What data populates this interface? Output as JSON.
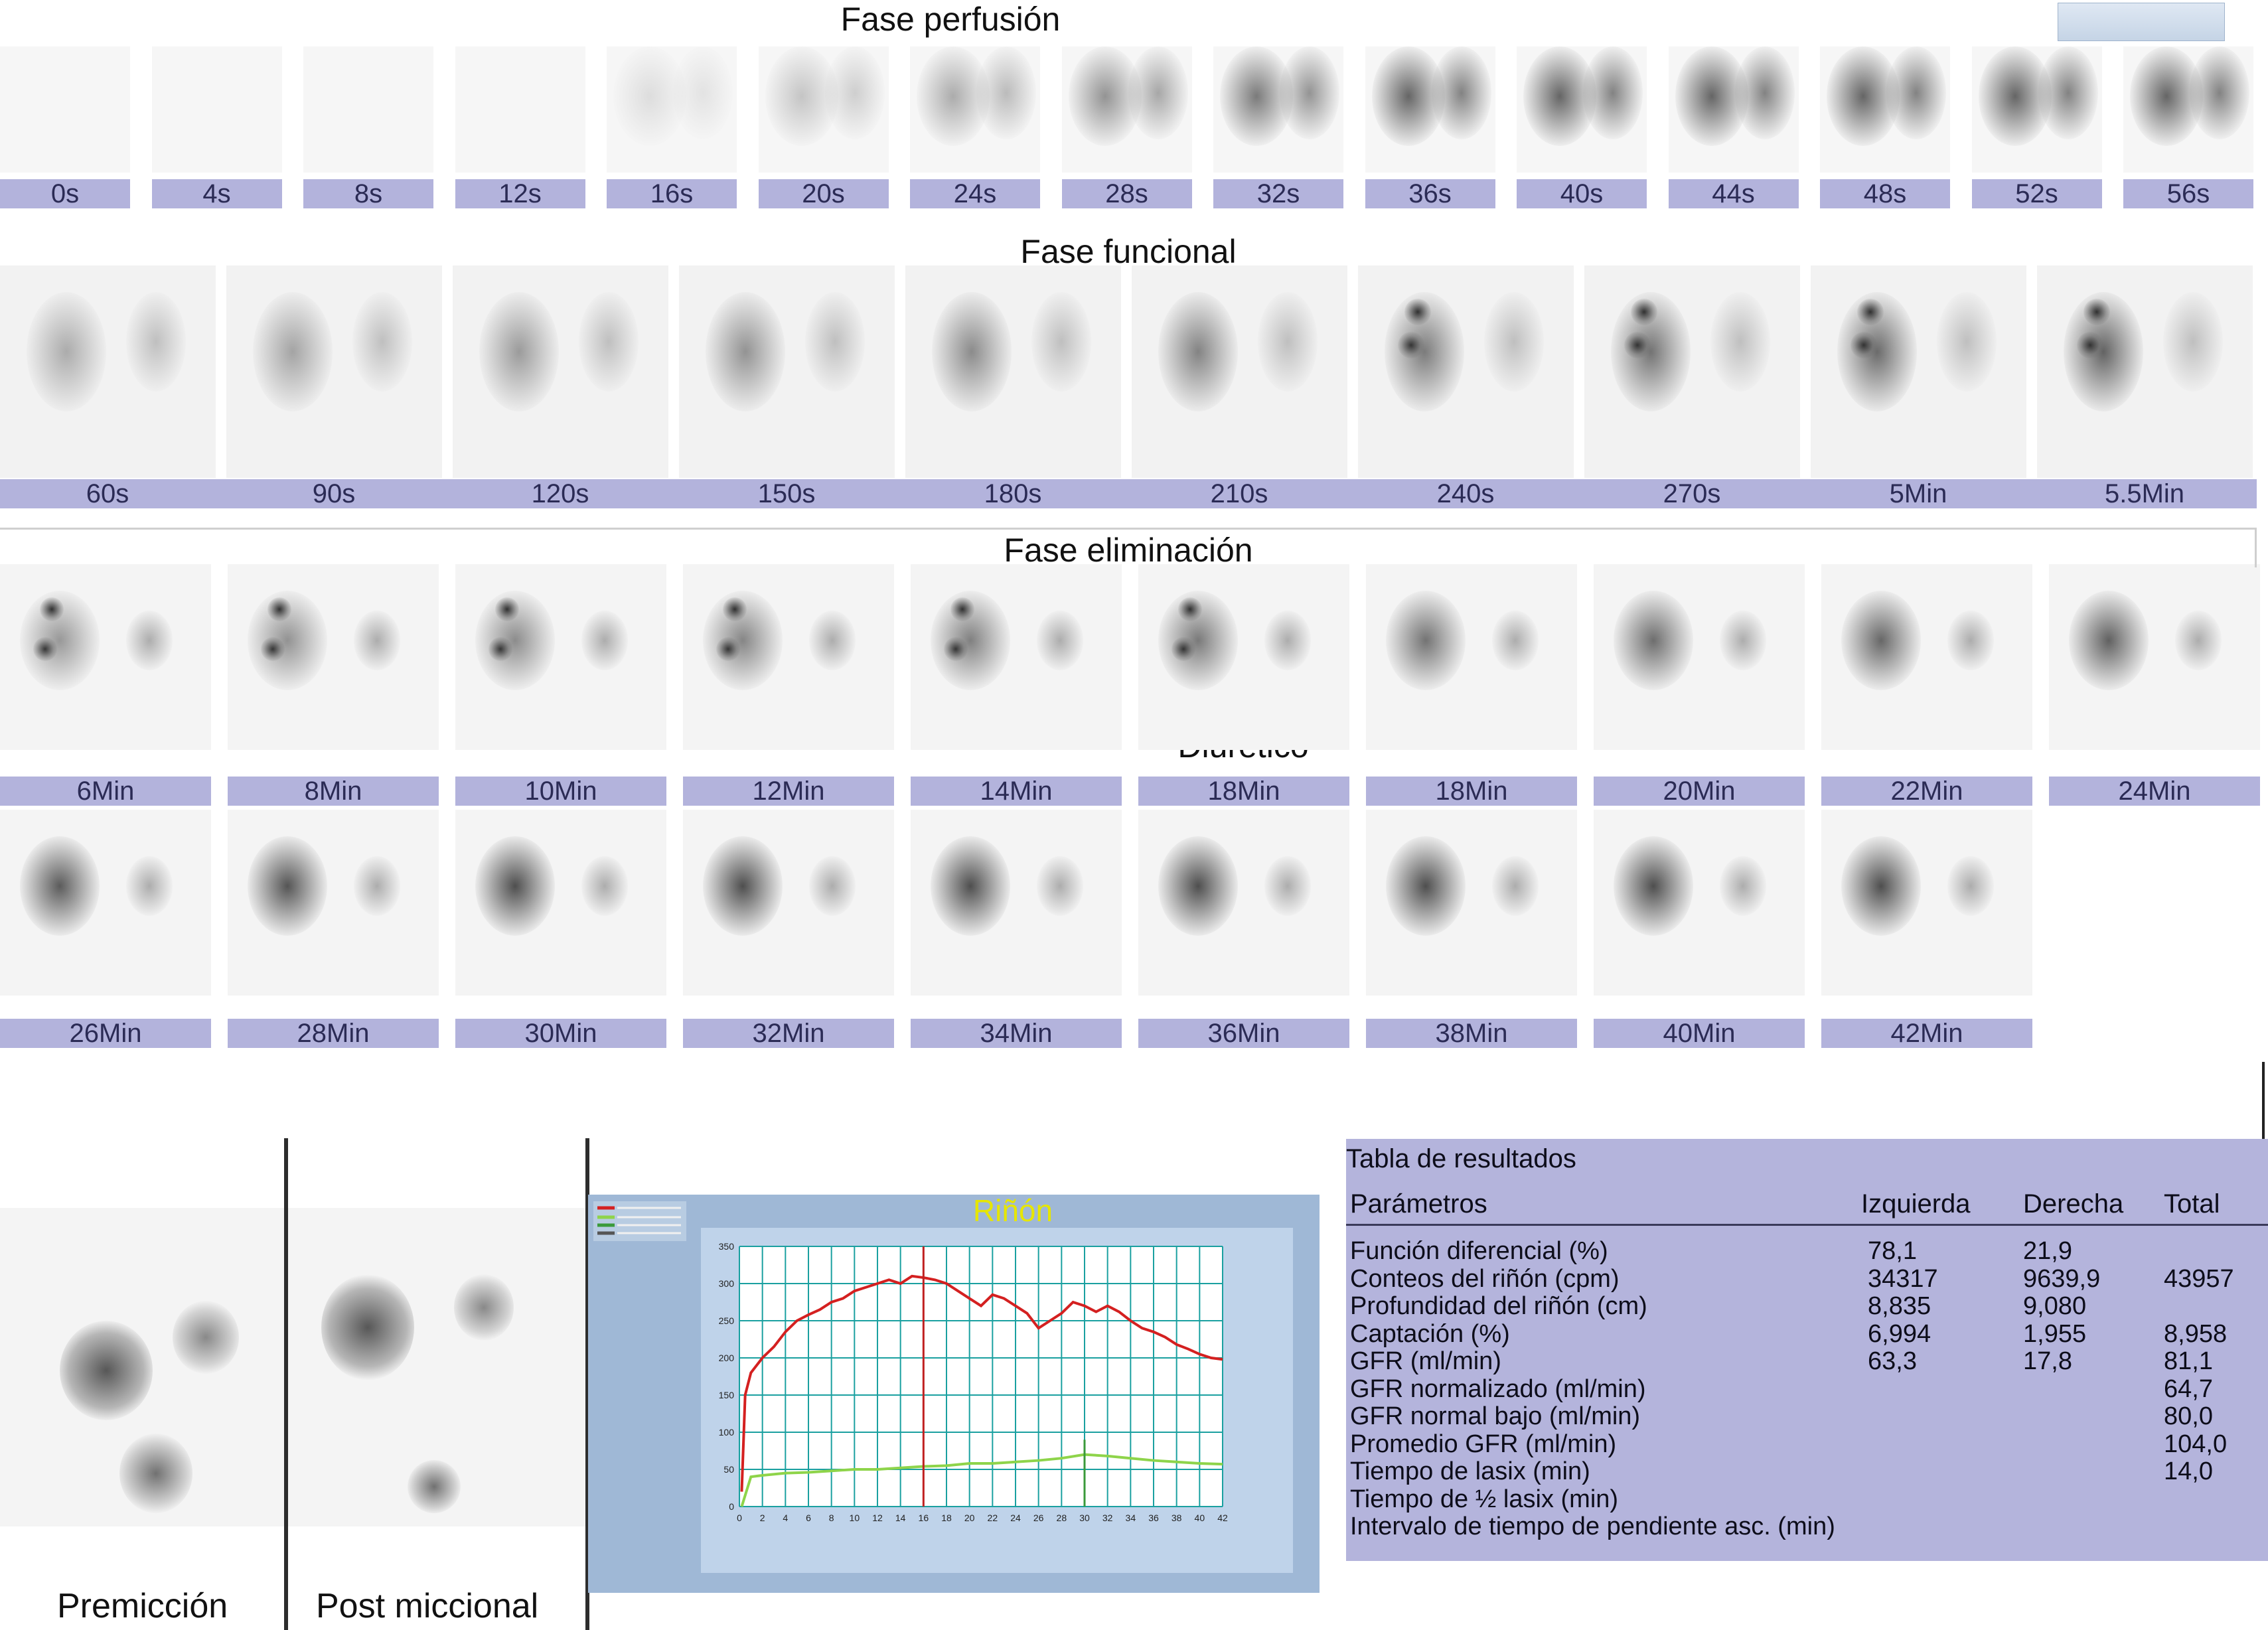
{
  "perfusion": {
    "title": "Fase perfusión",
    "labels": [
      "0s",
      "4s",
      "8s",
      "12s",
      "16s",
      "20s",
      "24s",
      "28s",
      "32s",
      "36s",
      "40s",
      "44s",
      "48s",
      "52s",
      "56s"
    ]
  },
  "functional": {
    "title": "Fase funcional",
    "labels": [
      "60s",
      "90s",
      "120s",
      "150s",
      "180s",
      "210s",
      "240s",
      "270s",
      "5Min",
      "5.5Min"
    ]
  },
  "elimination": {
    "title": "Fase eliminación",
    "diuretic_label": "Diurético",
    "labels_row1": [
      "6Min",
      "8Min",
      "10Min",
      "12Min",
      "14Min",
      "18Min",
      "18Min",
      "20Min",
      "22Min",
      "24Min"
    ],
    "labels_row2": [
      "26Min",
      "28Min",
      "30Min",
      "32Min",
      "34Min",
      "36Min",
      "38Min",
      "40Min",
      "42Min"
    ]
  },
  "bottom": {
    "premiccion_label": "Premicción",
    "post_label": "Post miccional"
  },
  "chart_data": {
    "type": "line",
    "title": "Riñón",
    "title_color": "#e6e600",
    "xlabel": "",
    "ylabel": "",
    "xlim": [
      0,
      42
    ],
    "ylim": [
      0,
      350
    ],
    "grid": true,
    "grid_color": "#1aa0a0",
    "x_ticks": [
      0,
      2,
      4,
      6,
      8,
      10,
      12,
      14,
      16,
      18,
      20,
      22,
      24,
      26,
      28,
      30,
      32,
      34,
      36,
      38,
      40,
      42
    ],
    "y_ticks": [
      0,
      50,
      100,
      150,
      200,
      250,
      300,
      350
    ],
    "x_tick_labels": [
      "0",
      "2",
      "4",
      "6",
      "8",
      "10",
      "12",
      "14",
      "16",
      "18",
      "20",
      "22",
      "24",
      "26",
      "28",
      "30",
      "32",
      "34",
      "36",
      "38",
      "40",
      "42"
    ],
    "y_tick_labels": [
      "0",
      "50",
      "100",
      "150",
      "200",
      "250",
      "300",
      "350"
    ],
    "series": [
      {
        "color": "#d42020",
        "x": [
          0.2,
          0.5,
          1,
          2,
          3,
          4,
          5,
          6,
          7,
          8,
          9,
          10,
          11,
          12,
          13,
          14,
          15,
          16,
          17,
          18,
          19,
          20,
          21,
          22,
          23,
          24,
          25,
          26,
          27,
          28,
          29,
          30,
          31,
          32,
          33,
          34,
          35,
          36,
          37,
          38,
          39,
          40,
          41,
          42
        ],
        "y": [
          20,
          150,
          180,
          200,
          215,
          235,
          250,
          258,
          265,
          275,
          280,
          290,
          295,
          300,
          305,
          300,
          310,
          308,
          305,
          300,
          290,
          280,
          270,
          285,
          280,
          270,
          260,
          240,
          250,
          260,
          275,
          270,
          262,
          270,
          262,
          250,
          240,
          235,
          228,
          218,
          212,
          205,
          200,
          198
        ]
      },
      {
        "color": "#8ed44a",
        "x": [
          0.2,
          1,
          2,
          4,
          6,
          8,
          10,
          12,
          14,
          16,
          18,
          20,
          22,
          24,
          26,
          28,
          30,
          32,
          34,
          36,
          38,
          40,
          42
        ],
        "y": [
          0,
          40,
          42,
          45,
          46,
          48,
          50,
          50,
          52,
          54,
          55,
          58,
          58,
          60,
          62,
          65,
          70,
          68,
          65,
          62,
          60,
          58,
          57
        ]
      }
    ],
    "peak_marker_x": 16,
    "marker_x2": 30
  },
  "results": {
    "title": "Tabla de resultados",
    "headers": [
      "Parámetros",
      "Izquierda",
      "Derecha",
      "Total"
    ],
    "rows": [
      [
        "Función diferencial (%)",
        "78,1",
        "21,9",
        ""
      ],
      [
        "Conteos del riñón (cpm)",
        "34317",
        "9639,9",
        "43957"
      ],
      [
        "Profundidad del riñón (cm)",
        "8,835",
        "9,080",
        ""
      ],
      [
        "Captación (%)",
        "6,994",
        "1,955",
        "8,958"
      ],
      [
        "GFR (ml/min)",
        "63,3",
        "17,8",
        "81,1"
      ],
      [
        "GFR normalizado (ml/min)",
        "",
        "",
        "64,7"
      ],
      [
        "GFR normal bajo (ml/min)",
        "",
        "",
        "80,0"
      ],
      [
        "Promedio GFR (ml/min)",
        "",
        "",
        "104,0"
      ],
      [
        "Tiempo de lasix (min)",
        "",
        "",
        "14,0"
      ],
      [
        "Tiempo de ½ lasix (min)",
        "",
        "",
        ""
      ],
      [
        "Intervalo de tiempo de pendiente asc. (min)",
        "",
        "",
        ""
      ]
    ]
  }
}
